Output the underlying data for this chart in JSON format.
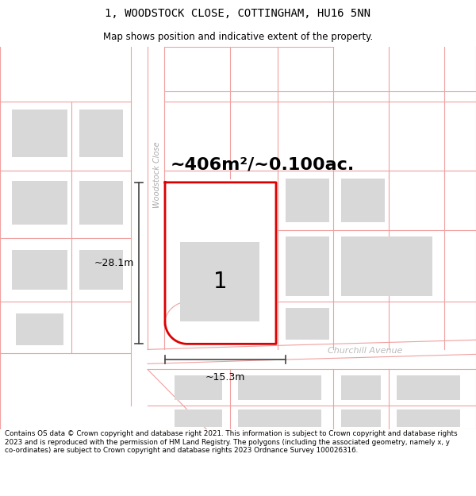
{
  "title": "1, WOODSTOCK CLOSE, COTTINGHAM, HU16 5NN",
  "subtitle": "Map shows position and indicative extent of the property.",
  "footer": "Contains OS data © Crown copyright and database right 2021. This information is subject to Crown copyright and database rights 2023 and is reproduced with the permission of HM Land Registry. The polygons (including the associated geometry, namely x, y co-ordinates) are subject to Crown copyright and database rights 2023 Ordnance Survey 100026316.",
  "area_label": "~406m²/~0.100ac.",
  "width_label": "~15.3m",
  "height_label": "~28.1m",
  "plot_number": "1",
  "street_name_1": "Woodstock Close",
  "street_name_2": "Churchill Avenue",
  "bg_color": "#ffffff",
  "map_bg": "#ffffff",
  "plot_outline_color": "#dd0000",
  "building_fill": "#d8d8d8",
  "road_line_color": "#f0a0a0",
  "dim_line_color": "#444444",
  "parcel_line_color": "#f5b0b0"
}
